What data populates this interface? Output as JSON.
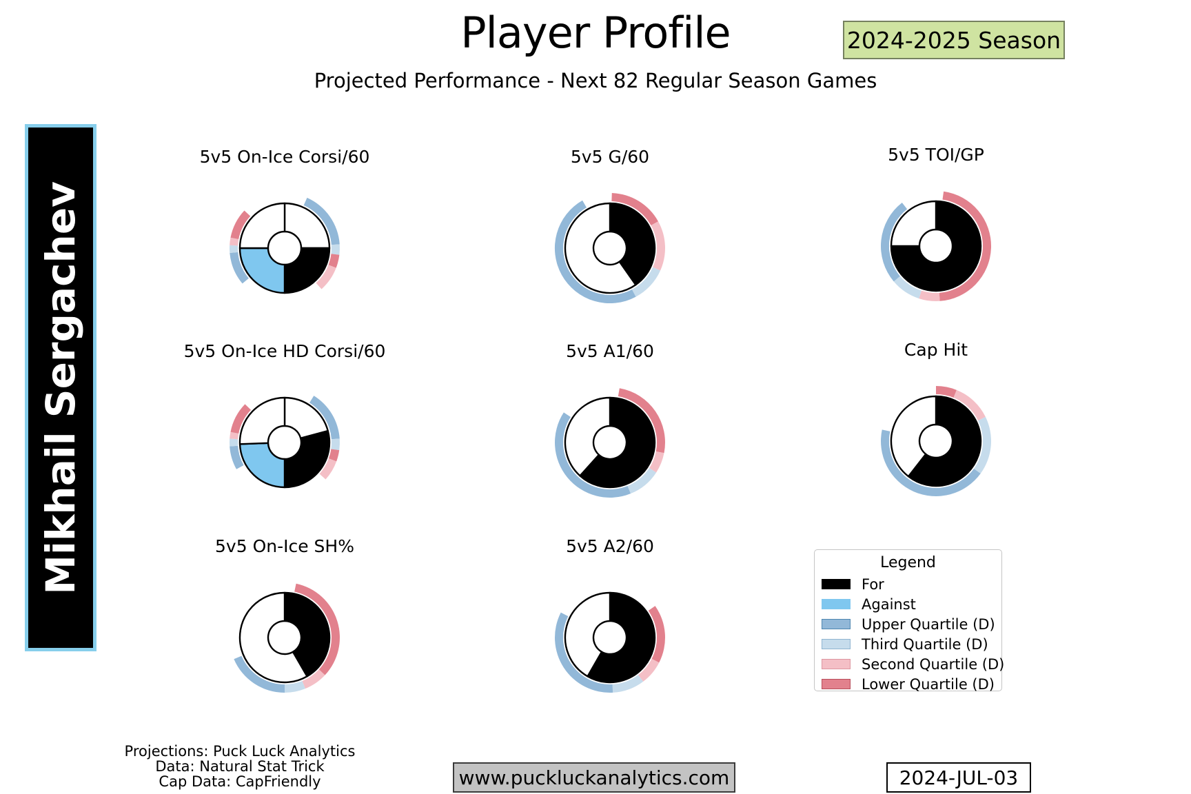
{
  "header": {
    "title": "Player Profile",
    "season_badge": "2024-2025 Season",
    "subtitle": "Projected Performance - Next 82 Regular Season Games"
  },
  "player": {
    "name": "Mikhail Sergachev"
  },
  "colors": {
    "for": "#000000",
    "against": "#7fc7ef",
    "upper_quartile": "#92b8d8",
    "third_quartile": "#c6dcec",
    "second_quartile": "#f4bfc6",
    "lower_quartile": "#e2818d",
    "white": "#ffffff",
    "badge_bg": "#cfe3a1",
    "sidebar_border": "#87ceeb",
    "website_box_bg": "#c3c3c3"
  },
  "chart_data": [
    {
      "type": "donut-quad",
      "title": "5v5 On-Ice Corsi/60",
      "angle_convention": "degrees clockwise from 12 o'clock",
      "inner": [
        {
          "start": 0,
          "end": 90,
          "color": "white"
        },
        {
          "start": 90,
          "end": 180,
          "color": "for"
        },
        {
          "start": 180,
          "end": 270,
          "color": "against"
        },
        {
          "start": 270,
          "end": 360,
          "color": "white"
        }
      ],
      "outer": [
        {
          "start": 24,
          "end": 86,
          "color": "upper_quartile"
        },
        {
          "start": 86,
          "end": 97,
          "color": "third_quartile"
        },
        {
          "start": 97,
          "end": 111,
          "color": "lower_quartile"
        },
        {
          "start": 111,
          "end": 138,
          "color": "second_quartile"
        },
        {
          "start": 230,
          "end": 265,
          "color": "upper_quartile"
        },
        {
          "start": 265,
          "end": 273,
          "color": "third_quartile"
        },
        {
          "start": 273,
          "end": 281,
          "color": "second_quartile"
        },
        {
          "start": 281,
          "end": 313,
          "color": "lower_quartile"
        }
      ]
    },
    {
      "type": "donut-gauge",
      "title": "5v5 G/60",
      "angle_convention": "degrees clockwise from 12 o'clock",
      "inner": [
        {
          "start": 0,
          "end": 145,
          "color": "for"
        },
        {
          "start": 145,
          "end": 360,
          "color": "white"
        }
      ],
      "outer": [
        {
          "start": 2,
          "end": 61,
          "color": "lower_quartile"
        },
        {
          "start": 61,
          "end": 114,
          "color": "second_quartile"
        },
        {
          "start": 114,
          "end": 152,
          "color": "third_quartile"
        },
        {
          "start": 152,
          "end": 330,
          "color": "upper_quartile"
        }
      ]
    },
    {
      "type": "donut-gauge",
      "title": "5v5 TOI/GP",
      "angle_convention": "degrees clockwise from 12 o'clock",
      "inner": [
        {
          "start": 0,
          "end": 270,
          "color": "for"
        },
        {
          "start": 270,
          "end": 360,
          "color": "white"
        }
      ],
      "outer": [
        {
          "start": 8,
          "end": 176,
          "color": "lower_quartile"
        },
        {
          "start": 176,
          "end": 198,
          "color": "second_quartile"
        },
        {
          "start": 198,
          "end": 230,
          "color": "third_quartile"
        },
        {
          "start": 230,
          "end": 322,
          "color": "upper_quartile"
        }
      ]
    },
    {
      "type": "donut-quad",
      "title": "5v5 On-Ice HD Corsi/60",
      "angle_convention": "degrees clockwise from 12 o'clock",
      "inner": [
        {
          "start": 0,
          "end": 75,
          "color": "white"
        },
        {
          "start": 75,
          "end": 180,
          "color": "for"
        },
        {
          "start": 180,
          "end": 268,
          "color": "against"
        },
        {
          "start": 268,
          "end": 360,
          "color": "white"
        }
      ],
      "outer": [
        {
          "start": 32,
          "end": 86,
          "color": "upper_quartile"
        },
        {
          "start": 86,
          "end": 98,
          "color": "third_quartile"
        },
        {
          "start": 98,
          "end": 110,
          "color": "lower_quartile"
        },
        {
          "start": 110,
          "end": 132,
          "color": "second_quartile"
        },
        {
          "start": 241,
          "end": 266,
          "color": "upper_quartile"
        },
        {
          "start": 266,
          "end": 274,
          "color": "third_quartile"
        },
        {
          "start": 274,
          "end": 281,
          "color": "second_quartile"
        },
        {
          "start": 281,
          "end": 314,
          "color": "lower_quartile"
        }
      ]
    },
    {
      "type": "donut-gauge",
      "title": "5v5 A1/60",
      "angle_convention": "degrees clockwise from 12 o'clock",
      "inner": [
        {
          "start": 0,
          "end": 222,
          "color": "for"
        },
        {
          "start": 222,
          "end": 360,
          "color": "white"
        }
      ],
      "outer": [
        {
          "start": 10,
          "end": 101,
          "color": "lower_quartile"
        },
        {
          "start": 101,
          "end": 123,
          "color": "second_quartile"
        },
        {
          "start": 123,
          "end": 158,
          "color": "third_quartile"
        },
        {
          "start": 158,
          "end": 303,
          "color": "upper_quartile"
        }
      ]
    },
    {
      "type": "donut-gauge",
      "title": "Cap Hit",
      "angle_convention": "degrees clockwise from 12 o'clock",
      "inner": [
        {
          "start": 0,
          "end": 218,
          "color": "for"
        },
        {
          "start": 218,
          "end": 360,
          "color": "white"
        }
      ],
      "outer": [
        {
          "start": 0,
          "end": 22,
          "color": "lower_quartile"
        },
        {
          "start": 22,
          "end": 64,
          "color": "second_quartile"
        },
        {
          "start": 64,
          "end": 126,
          "color": "third_quartile"
        },
        {
          "start": 126,
          "end": 282,
          "color": "upper_quartile"
        }
      ]
    },
    {
      "type": "donut-gauge",
      "title": "5v5 On-Ice SH%",
      "angle_convention": "degrees clockwise from 12 o'clock",
      "inner": [
        {
          "start": 0,
          "end": 150,
          "color": "for"
        },
        {
          "start": 150,
          "end": 360,
          "color": "white"
        }
      ],
      "outer": [
        {
          "start": 12,
          "end": 133,
          "color": "lower_quartile"
        },
        {
          "start": 133,
          "end": 158,
          "color": "second_quartile"
        },
        {
          "start": 158,
          "end": 180,
          "color": "third_quartile"
        },
        {
          "start": 180,
          "end": 247,
          "color": "upper_quartile"
        }
      ]
    },
    {
      "type": "donut-gauge",
      "title": "5v5 A2/60",
      "angle_convention": "degrees clockwise from 12 o'clock",
      "inner": [
        {
          "start": 0,
          "end": 210,
          "color": "for"
        },
        {
          "start": 210,
          "end": 360,
          "color": "white"
        }
      ],
      "outer": [
        {
          "start": 55,
          "end": 117,
          "color": "lower_quartile"
        },
        {
          "start": 117,
          "end": 143,
          "color": "second_quartile"
        },
        {
          "start": 143,
          "end": 177,
          "color": "third_quartile"
        },
        {
          "start": 177,
          "end": 297,
          "color": "upper_quartile"
        }
      ]
    }
  ],
  "legend": {
    "title": "Legend",
    "items": [
      {
        "label": "For",
        "color": "#000000",
        "border": "#000000"
      },
      {
        "label": "Against",
        "color": "#7fc7ef",
        "border": "#7fc7ef"
      },
      {
        "label": "Upper Quartile (D)",
        "color": "#92b8d8",
        "border": "#4e86b0"
      },
      {
        "label": "Third Quartile (D)",
        "color": "#c6dcec",
        "border": "#8fb4d0"
      },
      {
        "label": "Second Quartile (D)",
        "color": "#f4bfc6",
        "border": "#dd96a0"
      },
      {
        "label": "Lower Quartile (D)",
        "color": "#e2818d",
        "border": "#b84d5a"
      }
    ]
  },
  "footer": {
    "credit_line1": "Projections: Puck Luck Analytics",
    "credit_line2": "Data: Natural Stat Trick",
    "credit_line3": "Cap Data: CapFriendly",
    "website": "www.puckluckanalytics.com",
    "date": "2024-JUL-03"
  }
}
